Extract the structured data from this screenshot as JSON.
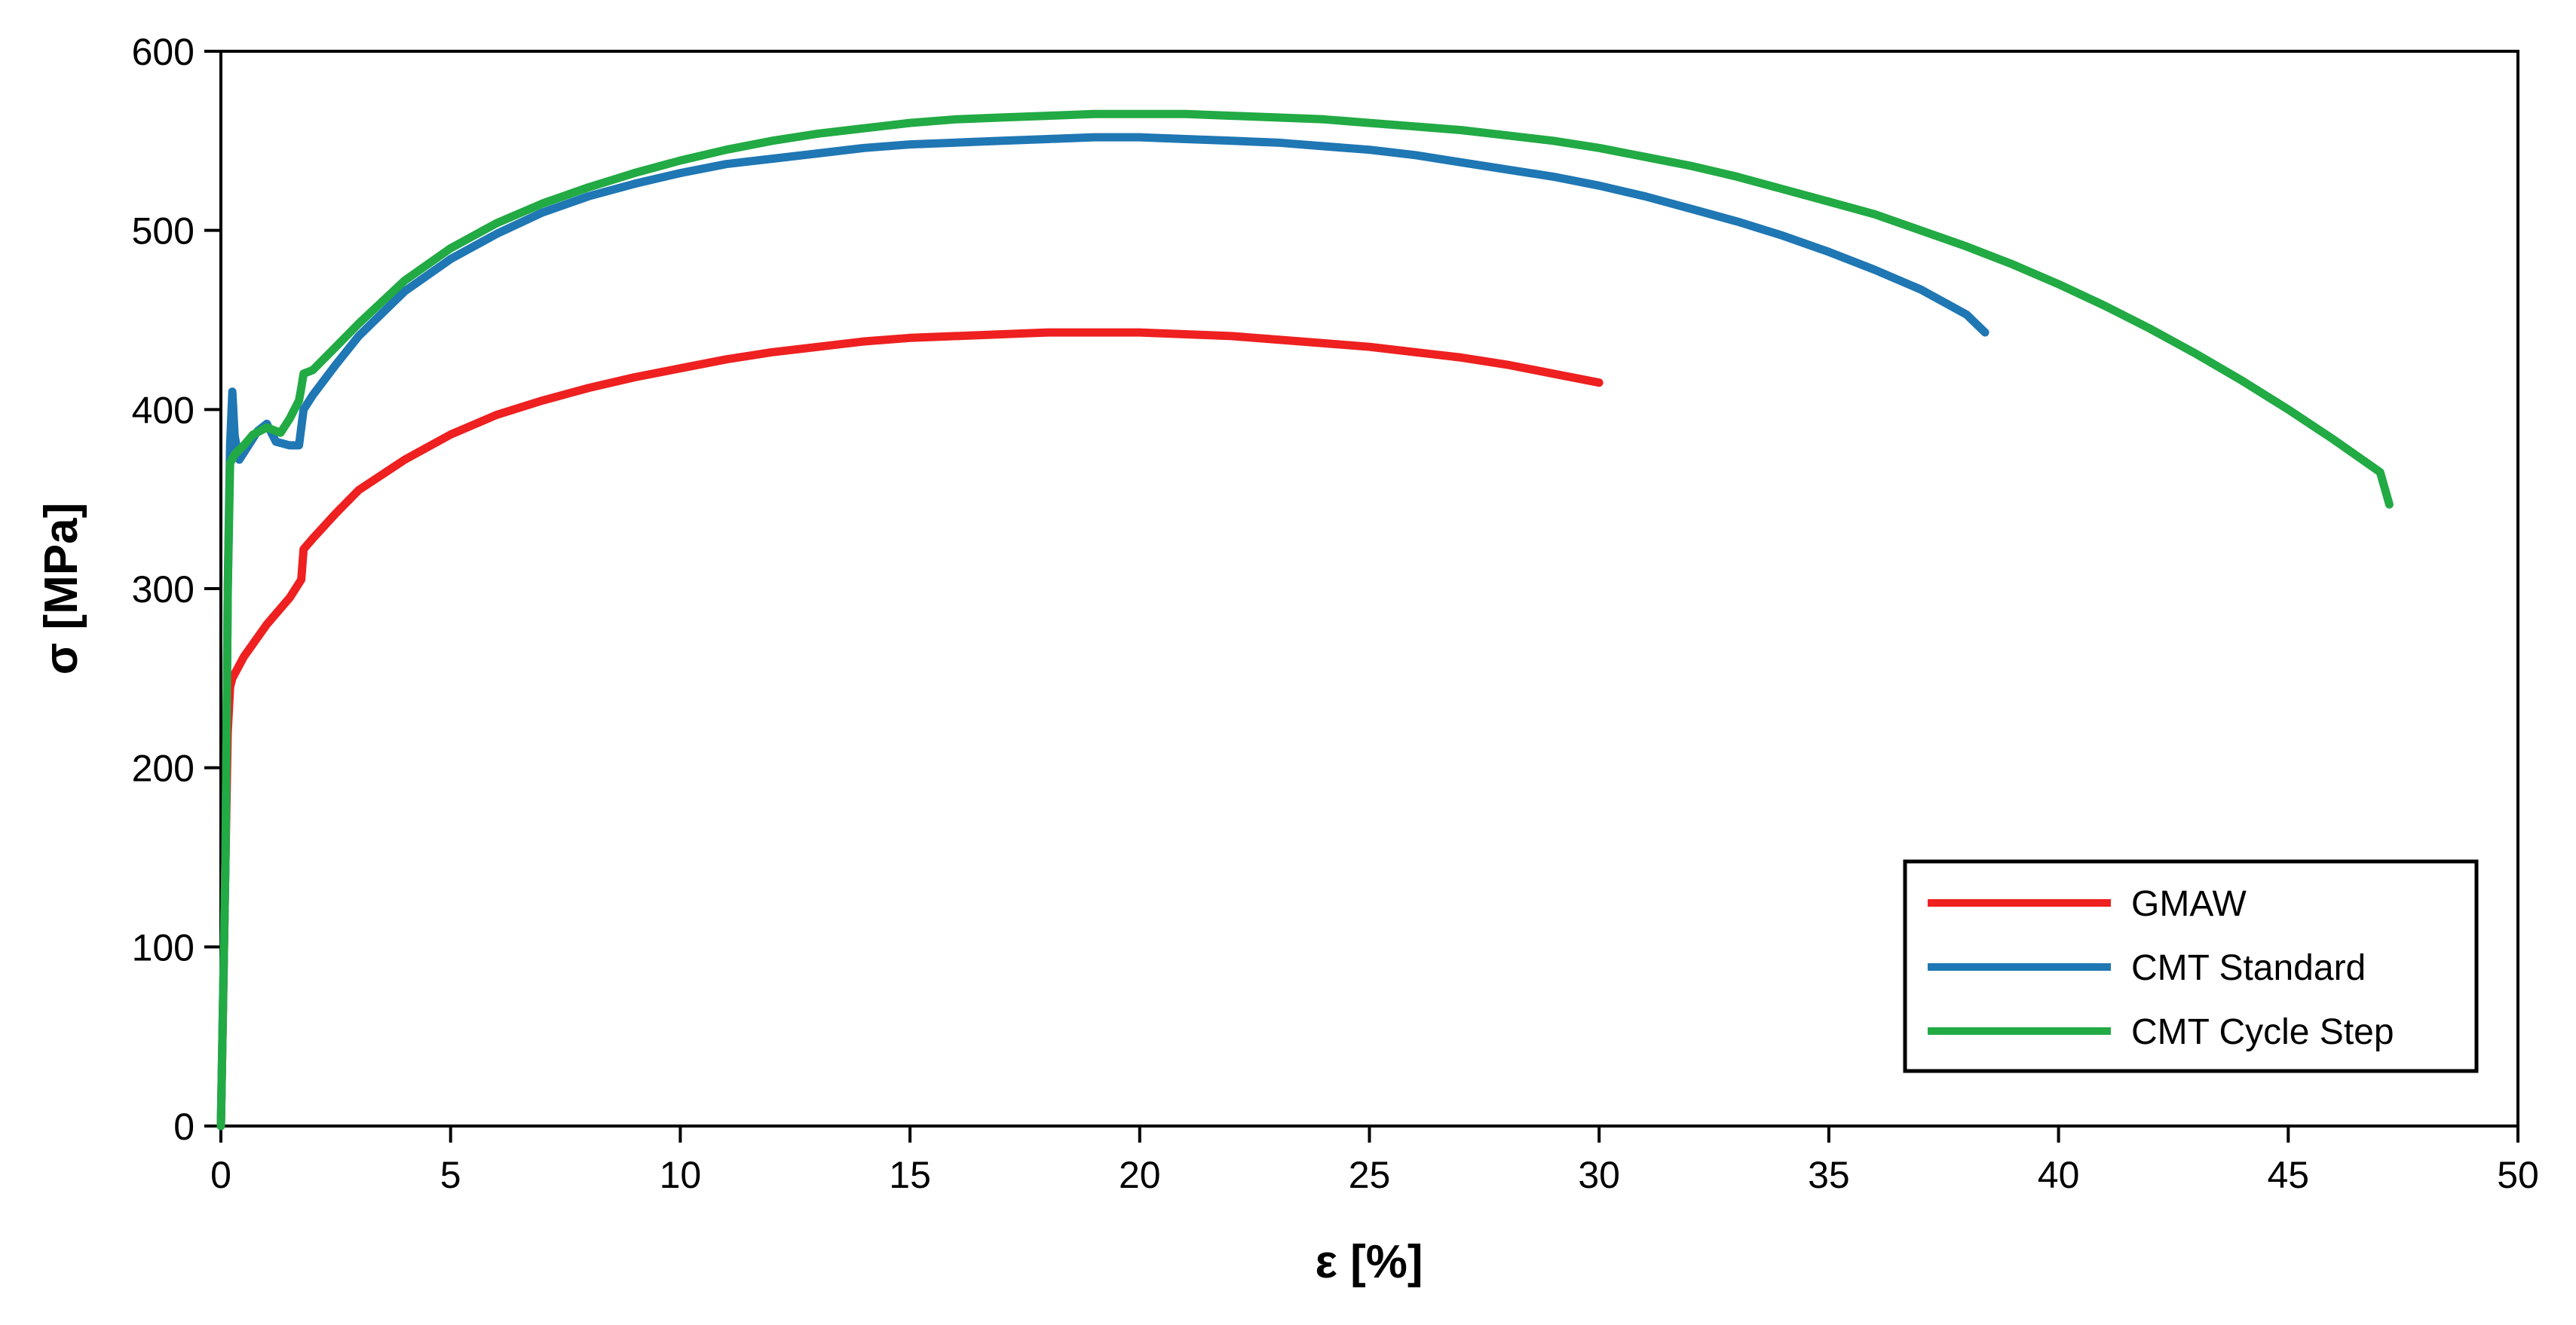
{
  "chart_data": {
    "type": "line",
    "title": "",
    "xlabel": "ε [%]",
    "ylabel": "σ [MPa]",
    "xlim": [
      0,
      50
    ],
    "ylim": [
      0,
      600
    ],
    "x_ticks": [
      0,
      5,
      10,
      15,
      20,
      25,
      30,
      35,
      40,
      45,
      50
    ],
    "y_ticks": [
      0,
      100,
      200,
      300,
      400,
      500,
      600
    ],
    "x_tick_labels": [
      "0",
      "5",
      "10",
      "15",
      "20",
      "25",
      "30",
      "35",
      "40",
      "45",
      "50"
    ],
    "y_tick_labels": [
      "0",
      "100",
      "200",
      "300",
      "400",
      "500",
      "600"
    ],
    "grid": false,
    "legend_position": "bottom-right",
    "series": [
      {
        "name": "GMAW",
        "color": "#ee2020",
        "x": [
          0,
          0.05,
          0.1,
          0.15,
          0.2,
          0.25,
          0.5,
          1.0,
          1.5,
          1.75,
          1.8,
          2.0,
          2.5,
          3,
          4,
          5,
          6,
          7,
          8,
          9,
          10,
          11,
          12,
          13,
          14,
          15,
          16,
          17,
          18,
          19,
          20,
          21,
          22,
          23,
          24,
          25,
          26,
          27,
          28,
          29,
          30
        ],
        "y": [
          0,
          70,
          150,
          220,
          245,
          250,
          262,
          280,
          295,
          305,
          322,
          328,
          342,
          355,
          372,
          386,
          397,
          405,
          412,
          418,
          423,
          428,
          432,
          435,
          438,
          440,
          441,
          442,
          443,
          443,
          443,
          442,
          441,
          439,
          437,
          435,
          432,
          429,
          425,
          420,
          415
        ]
      },
      {
        "name": "CMT Standard",
        "color": "#1f77b4",
        "x": [
          0,
          0.1,
          0.15,
          0.2,
          0.25,
          0.3,
          0.4,
          0.6,
          0.8,
          1.0,
          1.2,
          1.5,
          1.7,
          1.8,
          2,
          2.5,
          3,
          4,
          5,
          6,
          7,
          8,
          9,
          10,
          11,
          12,
          13,
          14,
          15,
          16,
          17,
          18,
          19,
          20,
          21,
          22,
          23,
          24,
          25,
          26,
          27,
          28,
          29,
          30,
          31,
          32,
          33,
          34,
          35,
          36,
          37,
          38,
          38.4
        ],
        "y": [
          0,
          150,
          300,
          380,
          410,
          385,
          372,
          380,
          388,
          392,
          382,
          380,
          380,
          400,
          408,
          425,
          441,
          466,
          484,
          498,
          510,
          519,
          526,
          532,
          537,
          540,
          543,
          546,
          548,
          549,
          550,
          551,
          552,
          552,
          551,
          550,
          549,
          547,
          545,
          542,
          538,
          534,
          530,
          525,
          519,
          512,
          505,
          497,
          488,
          478,
          467,
          453,
          443
        ]
      },
      {
        "name": "CMT Cycle Step",
        "color": "#22aa44",
        "x": [
          0,
          0.1,
          0.15,
          0.2,
          0.3,
          0.5,
          0.7,
          1.0,
          1.3,
          1.5,
          1.7,
          1.75,
          1.8,
          2,
          2.5,
          3,
          4,
          5,
          6,
          7,
          8,
          9,
          10,
          11,
          12,
          13,
          14,
          15,
          16,
          17,
          18,
          19,
          20,
          21,
          22,
          23,
          24,
          25,
          26,
          27,
          28,
          29,
          30,
          31,
          32,
          33,
          34,
          35,
          36,
          37,
          38,
          39,
          40,
          41,
          42,
          43,
          44,
          45,
          46,
          47,
          47.2
        ],
        "y": [
          0,
          150,
          300,
          370,
          375,
          380,
          386,
          390,
          387,
          395,
          405,
          412,
          420,
          422,
          435,
          448,
          472,
          490,
          504,
          515,
          524,
          532,
          539,
          545,
          550,
          554,
          557,
          560,
          562,
          563,
          564,
          565,
          565,
          565,
          564,
          563,
          562,
          560,
          558,
          556,
          553,
          550,
          546,
          541,
          536,
          530,
          523,
          516,
          509,
          500,
          491,
          481,
          470,
          458,
          445,
          431,
          416,
          400,
          383,
          365,
          347
        ]
      }
    ]
  }
}
